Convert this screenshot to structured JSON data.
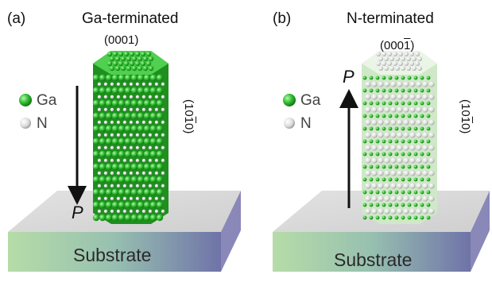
{
  "panels": [
    {
      "tag": "(a)",
      "title": "Ga-terminated",
      "top_facet": "(0001)",
      "side_facet": {
        "pre": "(10",
        "bar": "1",
        "post": "0)"
      },
      "polarization": "P",
      "substrate": "Substrate",
      "legend": [
        {
          "symbol": "Ga",
          "color": "#2fbf2f"
        },
        {
          "symbol": "N",
          "color": "#d9d9d9"
        }
      ]
    },
    {
      "tag": "(b)",
      "title": "N-terminated",
      "top_facet": {
        "pre": "(000",
        "bar": "1",
        "post": ")"
      },
      "side_facet": {
        "pre": "(10",
        "bar": "1",
        "post": "0)"
      },
      "polarization": "P",
      "substrate": "Substrate",
      "legend": [
        {
          "symbol": "Ga",
          "color": "#2fbf2f"
        },
        {
          "symbol": "N",
          "color": "#d9d9d9"
        }
      ]
    }
  ],
  "colors": {
    "ga_atom": "#2fbf2f",
    "n_atom": "#d9d9d9",
    "substrate_top": "#d8d8d8",
    "substrate_side_left": "#9fd08a",
    "substrate_side_right": "#6c6aa8"
  }
}
